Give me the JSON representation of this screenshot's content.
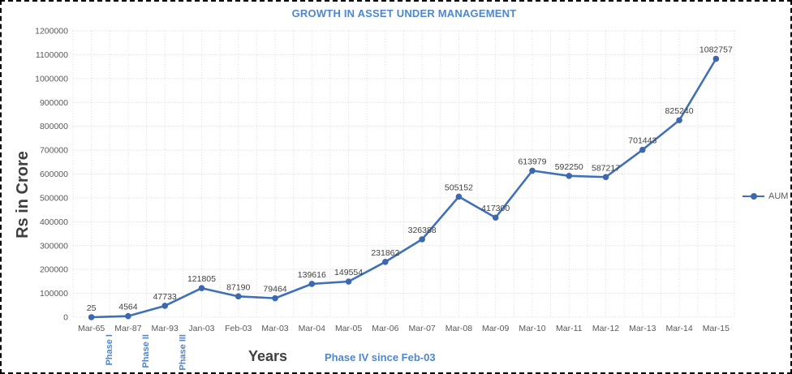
{
  "title": "GROWTH IN ASSET UNDER MANAGEMENT",
  "y_axis_title": "Rs in Crore",
  "x_axis_title": "Years",
  "legend": {
    "label": "AUM"
  },
  "annotations": {
    "phase_labels": [
      {
        "label": "Phase I",
        "category_index": 1
      },
      {
        "label": "Phase II",
        "category_index": 2
      },
      {
        "label": "Phase III",
        "category_index": 3
      }
    ],
    "phase4_note": "Phase IV since Feb-03"
  },
  "colors": {
    "title_text": "#4E87CE",
    "line": "#4070B8",
    "marker": "#3E68AE",
    "gridline": "#D9D9D9",
    "tick_text": "#595959",
    "data_label_text": "#3F3F3F",
    "axis_title_text": "#3F3F3F",
    "phase_text": "#4E87CE",
    "frame_border": "#000000",
    "background": "#FFFFFF"
  },
  "chart_data": {
    "type": "line",
    "title": "GROWTH IN ASSET UNDER MANAGEMENT",
    "xlabel": "Years",
    "ylabel": "Rs in Crore",
    "ylim": [
      0,
      1200000
    ],
    "y_tick_step": 100000,
    "grid": true,
    "legend_position": "right",
    "marker": "circle",
    "data_labels": true,
    "categories": [
      "Mar-65",
      "Mar-87",
      "Mar-93",
      "Jan-03",
      "Feb-03",
      "Mar-03",
      "Mar-04",
      "Mar-05",
      "Mar-06",
      "Mar-07",
      "Mar-08",
      "Mar-09",
      "Mar-10",
      "Mar-11",
      "Mar-12",
      "Mar-13",
      "Mar-14",
      "Mar-15"
    ],
    "series": [
      {
        "name": "AUM",
        "values": [
          25,
          4564,
          47733,
          121805,
          87190,
          79464,
          139616,
          149554,
          231862,
          326388,
          505152,
          417300,
          613979,
          592250,
          587217,
          701443,
          825240,
          1082757
        ]
      }
    ],
    "annotations": [
      "Phase I",
      "Phase II",
      "Phase III",
      "Phase IV since Feb-03"
    ]
  }
}
